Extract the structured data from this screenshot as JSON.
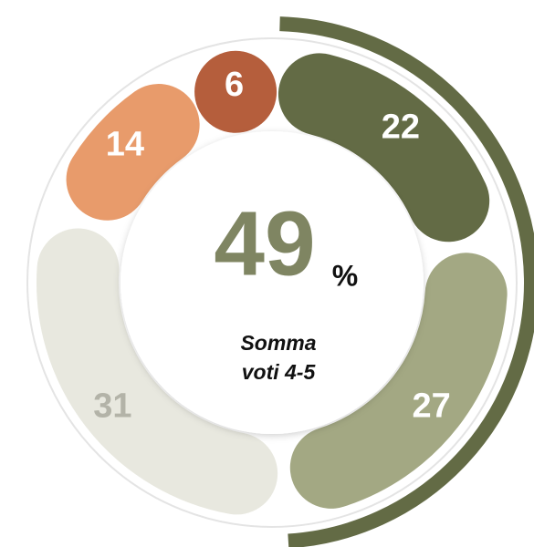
{
  "chart_data": {
    "type": "donut",
    "values": [
      22,
      27,
      31,
      14,
      6
    ],
    "colors": [
      "#636b45",
      "#a3a883",
      "#e8e8df",
      "#e89b6b",
      "#b55e3c"
    ],
    "label_colors": [
      "#ffffff",
      "#ffffff",
      "#b3b3a8",
      "#ffffff",
      "#ffffff"
    ],
    "center_value": 49,
    "center_unit": "%",
    "center_label": [
      "Somma",
      "voti 4-5"
    ],
    "highlight_color": "#636b45"
  }
}
